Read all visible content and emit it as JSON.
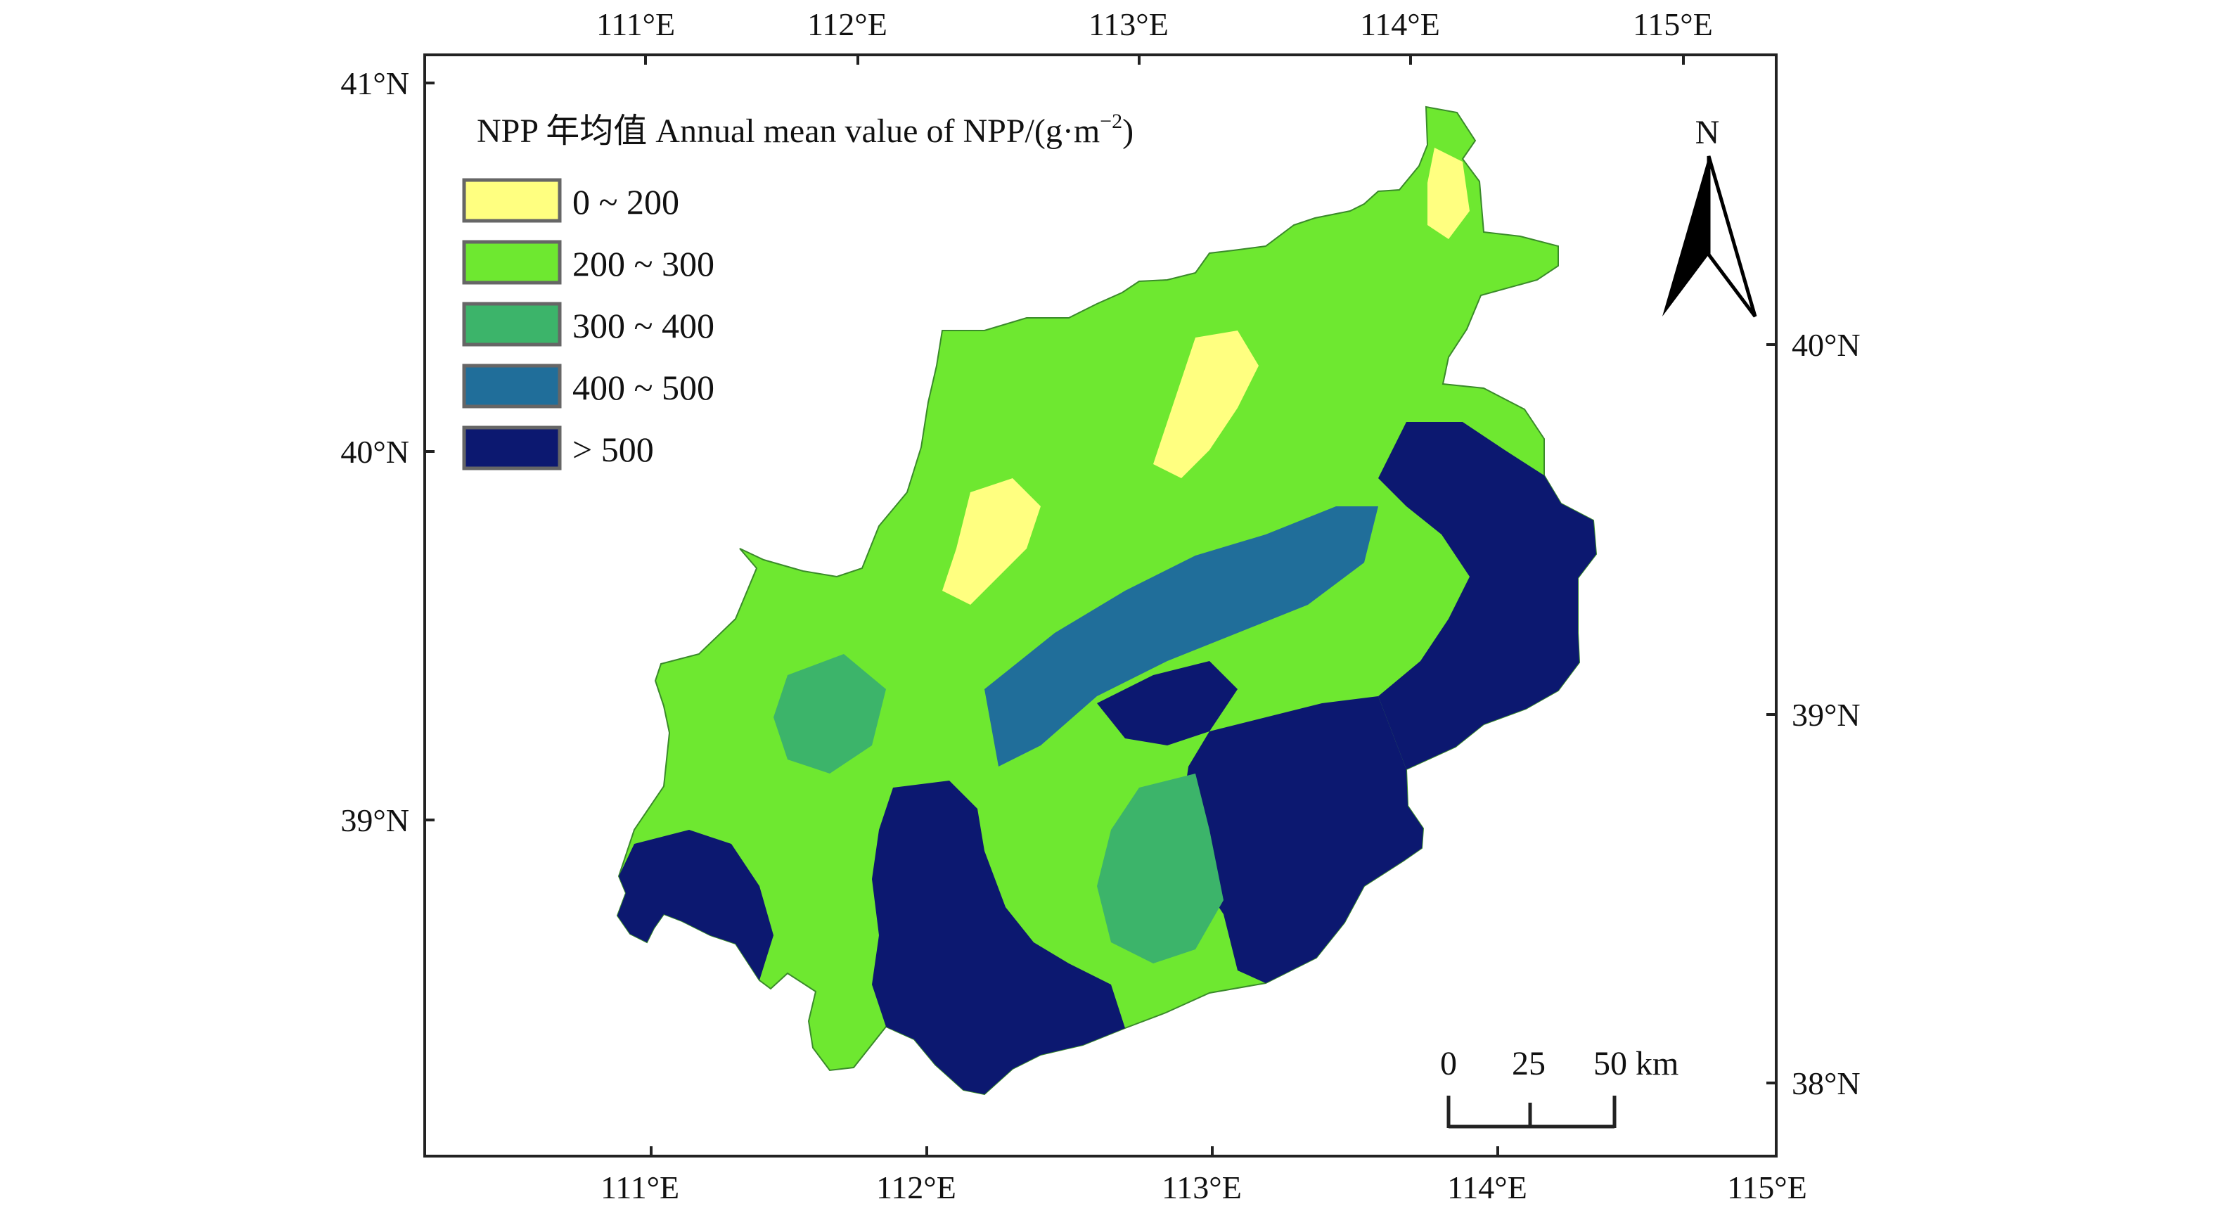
{
  "map": {
    "top_lon_labels": [
      "111°E",
      "112°E",
      "113°E",
      "114°E",
      "115°E"
    ],
    "bottom_lon_labels": [
      "111°E",
      "112°E",
      "113°E",
      "114°E",
      "115°E"
    ],
    "left_lat_labels": [
      "41°N",
      "40°N",
      "39°N"
    ],
    "right_lat_labels": [
      "40°N",
      "39°N",
      "38°N"
    ],
    "legend": {
      "title": "NPP 年均值 Annual mean value of NPP/(g·m",
      "title_superscript": "−2",
      "title_close": ")",
      "items": [
        {
          "label": "0 ~ 200",
          "color": "#FFFF80"
        },
        {
          "label": "200 ~ 300",
          "color": "#6EE830"
        },
        {
          "label": "300 ~ 400",
          "color": "#3CB46A"
        },
        {
          "label": "400 ~ 500",
          "color": "#206E9A"
        },
        {
          "label": "> 500",
          "color": "#0C1870"
        }
      ]
    },
    "north_arrow": {
      "label": "N",
      "icon": "north-arrow-icon"
    },
    "scale_bar": {
      "labels": [
        "0",
        "25",
        "50 km"
      ]
    }
  }
}
